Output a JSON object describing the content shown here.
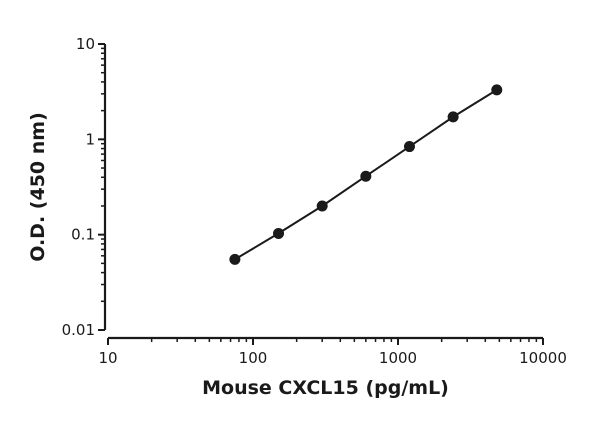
{
  "chart_data": {
    "type": "scatter",
    "title": "",
    "xlabel": "Mouse CXCL15 (pg/mL)",
    "ylabel": "O.D. (450 nm)",
    "xscale": "log",
    "yscale": "log",
    "xlim": [
      10,
      10000
    ],
    "ylim": [
      0.01,
      10
    ],
    "x_ticks": [
      10,
      100,
      1000,
      10000
    ],
    "x_tick_labels": [
      "10",
      "100",
      "1000",
      "10000"
    ],
    "y_ticks": [
      0.01,
      0.1,
      1,
      10
    ],
    "y_tick_labels": [
      "0.01",
      "0.1",
      "1",
      "10"
    ],
    "grid": false,
    "legend": "none",
    "fit_line": true,
    "marker_color": "#1a1a1a",
    "series": [
      {
        "x": [
          75,
          150,
          300,
          600,
          1200,
          2400,
          4800
        ],
        "y": [
          0.055,
          0.103,
          0.2,
          0.41,
          0.84,
          1.72,
          3.3
        ]
      }
    ]
  }
}
